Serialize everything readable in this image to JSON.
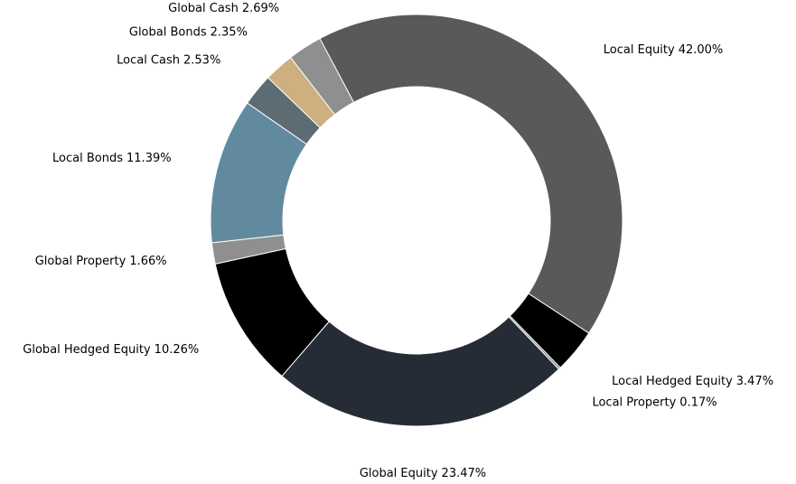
{
  "chart_data": {
    "type": "donut",
    "categories": [
      "Local Equity",
      "Local Hedged Equity",
      "Local Property",
      "Global Equity",
      "Global Hedged Equity",
      "Global Property",
      "Local Bonds",
      "Local Cash",
      "Global Bonds",
      "Global Cash"
    ],
    "values": [
      42.0,
      3.47,
      0.17,
      23.47,
      10.26,
      1.66,
      11.39,
      2.53,
      2.35,
      2.69
    ],
    "value_labels": [
      "42.00%",
      "3.47%",
      "0.17%",
      "23.47%",
      "10.26%",
      "1.66%",
      "11.39%",
      "2.53%",
      "2.35%",
      "2.69%"
    ],
    "colors": [
      "#595959",
      "#000000",
      "#7f7f7f",
      "#262c36",
      "#000000",
      "#8f8f8f",
      "#628a9e",
      "#5d6b72",
      "#cdaf80",
      "#8f8f8f"
    ]
  }
}
